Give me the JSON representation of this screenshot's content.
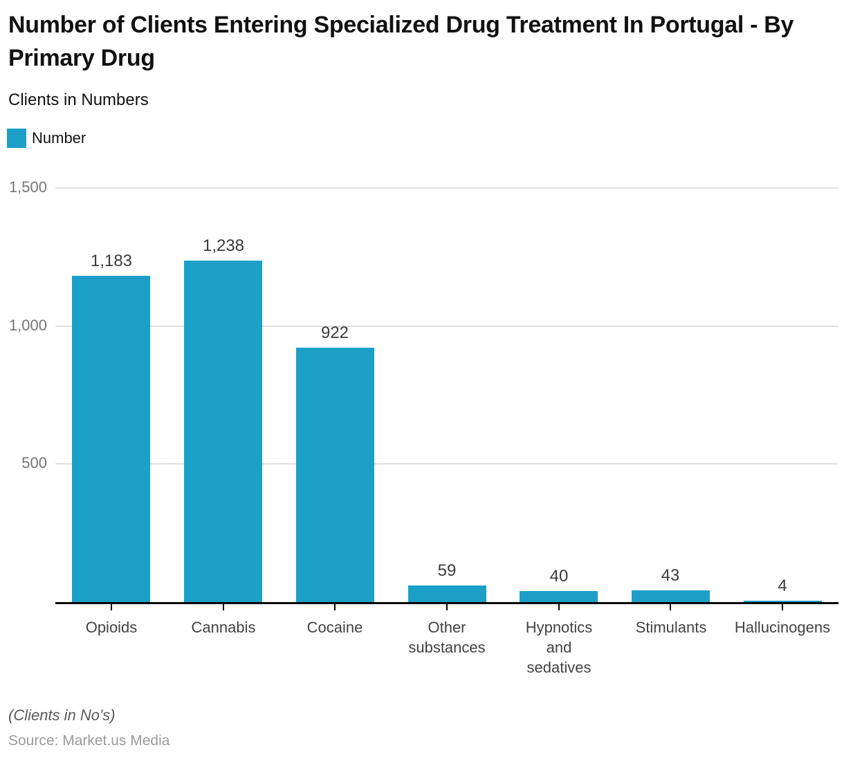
{
  "header": {
    "title": "Number of Clients Entering Specialized Drug Treatment In Portugal - By Primary Drug",
    "subtitle": "Clients in Numbers"
  },
  "legend": {
    "label": "Number",
    "color": "#1CA0C8"
  },
  "footer": {
    "note": "(Clients in No's)",
    "source": "Source: Market.us Media"
  },
  "chart_data": {
    "type": "bar",
    "title": "Number of Clients Entering Specialized Drug Treatment In Portugal - By Primary Drug",
    "subtitle": "Clients in Numbers",
    "categories": [
      "Opioids",
      "Cannabis",
      "Cocaine",
      "Other\nsubstances",
      "Hypnotics\nand\nsedatives",
      "Stimulants",
      "Hallucinogens"
    ],
    "values": [
      1183,
      1238,
      922,
      59,
      40,
      43,
      4
    ],
    "value_labels": [
      "1,183",
      "1,238",
      "922",
      "59",
      "40",
      "43",
      "4"
    ],
    "series_name": "Number",
    "xlabel": "",
    "ylabel": "Clients in Numbers",
    "ylim": [
      0,
      1500
    ],
    "yticks": [
      500,
      1000,
      1500
    ],
    "ytick_labels": [
      "500",
      "1,000",
      "1,500"
    ],
    "bar_color": "#1CA0C8",
    "grid": true,
    "gridline_color": "#e1e1e1",
    "legend_position": "top-left"
  }
}
